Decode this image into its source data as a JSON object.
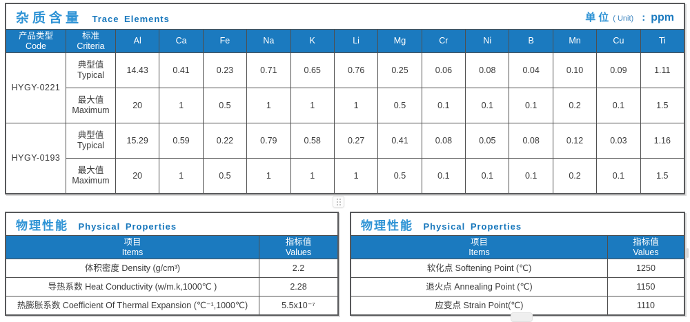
{
  "colors": {
    "header_bg": "#1b7abf",
    "title_cn_blue": "#2e93d5",
    "title_en_blue": "#1777bc",
    "border_gray": "#4f4f4f"
  },
  "trace_section": {
    "title_cn": "杂质含量",
    "title_en": "Trace Elements",
    "unit": {
      "cn": "单位",
      "paren": "( Unit)",
      "colon": ":",
      "value": "ppm"
    },
    "table": {
      "header": {
        "code_cn": "产品类型",
        "code_en": "Code",
        "criteria_cn": "标准",
        "criteria_en": "Criteria",
        "elements": [
          "Al",
          "Ca",
          "Fe",
          "Na",
          "K",
          "Li",
          "Mg",
          "Cr",
          "Ni",
          "B",
          "Mn",
          "Cu",
          "Ti"
        ]
      },
      "products": [
        {
          "code": "HYGY-0221",
          "rows": [
            {
              "label_cn": "典型值",
              "label_en": "Typical",
              "values": [
                "14.43",
                "0.41",
                "0.23",
                "0.71",
                "0.65",
                "0.76",
                "0.25",
                "0.06",
                "0.08",
                "0.04",
                "0.10",
                "0.09",
                "1.11"
              ]
            },
            {
              "label_cn": "最大值",
              "label_en": "Maximum",
              "values": [
                "20",
                "1",
                "0.5",
                "1",
                "1",
                "1",
                "0.5",
                "0.1",
                "0.1",
                "0.1",
                "0.2",
                "0.1",
                "1.5"
              ]
            }
          ]
        },
        {
          "code": "HYGY-0193",
          "rows": [
            {
              "label_cn": "典型值",
              "label_en": "Typical",
              "values": [
                "15.29",
                "0.59",
                "0.22",
                "0.79",
                "0.58",
                "0.27",
                "0.41",
                "0.08",
                "0.05",
                "0.08",
                "0.12",
                "0.03",
                "1.16"
              ]
            },
            {
              "label_cn": "最大值",
              "label_en": "Maximum",
              "values": [
                "20",
                "1",
                "0.5",
                "1",
                "1",
                "1",
                "0.5",
                "0.1",
                "0.1",
                "0.1",
                "0.2",
                "0.1",
                "1.5"
              ]
            }
          ]
        }
      ]
    }
  },
  "physical_left": {
    "title_cn": "物理性能",
    "title_en": "Physical Properties",
    "col_item_cn": "项目",
    "col_item_en": "Items",
    "col_value_cn": "指标值",
    "col_value_en": "Values",
    "rows": [
      {
        "item": "体积密度 Density (g/cm³)",
        "value": "2.2"
      },
      {
        "item": "导热系数 Heat Conductivity (w/m.k,1000℃ )",
        "value": "2.28"
      },
      {
        "item": "热膨胀系数 Coefficient Of Thermal Expansion (℃⁻¹,1000℃)",
        "value": "5.5x10⁻⁷"
      }
    ]
  },
  "physical_right": {
    "title_cn": "物理性能",
    "title_en": "Physical Properties",
    "col_item_cn": "项目",
    "col_item_en": "Items",
    "col_value_cn": "指标值",
    "col_value_en": "Values",
    "rows": [
      {
        "item": "软化点 Softening Point (℃)",
        "value": "1250"
      },
      {
        "item": "退火点 Annealing Point (℃)",
        "value": "1150"
      },
      {
        "item": "应变点 Strain Point(℃)",
        "value": "1110"
      }
    ]
  }
}
